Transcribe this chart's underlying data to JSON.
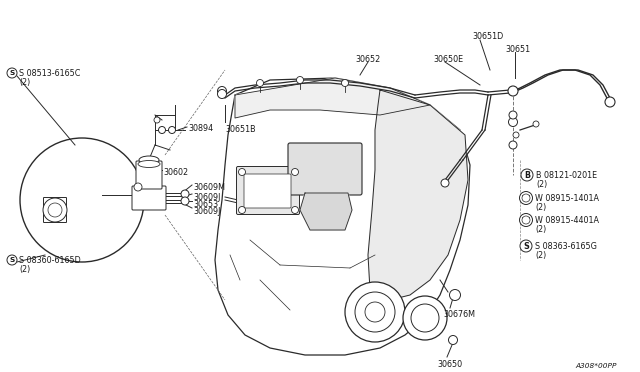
{
  "bg_color": "#ffffff",
  "line_color": "#2a2a2a",
  "text_color": "#1a1a1a",
  "font_size": 5.8,
  "diagram_code": "A308*00PP",
  "labels": {
    "S_top_left": "S 08513-6165C",
    "S_top_left_2": "(2)",
    "S_bot_left": "S 08360-6165D",
    "S_bot_left_2": "(2)",
    "30894": "30894",
    "30602": "30602",
    "30609M": "30609M",
    "30609J_1": "30609J",
    "30653": "30653",
    "30609J_2": "30609J",
    "30651D": "30651D",
    "30650E": "30650E",
    "30651": "30651",
    "30652": "30652",
    "30651B": "30651B",
    "30650": "30650",
    "30676M": "30676M",
    "B_label": "B 08121-0201E",
    "B_label2": "(2)",
    "W1_label": "W 08915-1401A",
    "W1_label2": "(2)",
    "W2_label": "W 08915-4401A",
    "W2_label2": "(2)",
    "S_right_label": "S 08363-6165G",
    "S_right_label2": "(2)"
  }
}
